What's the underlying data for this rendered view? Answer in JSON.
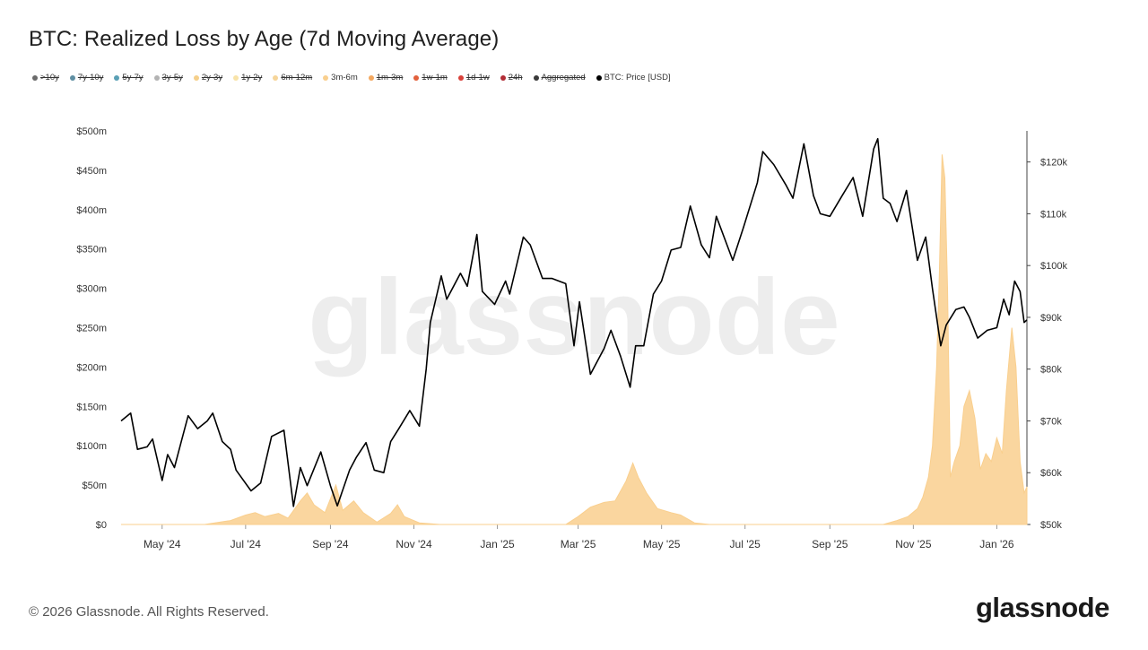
{
  "title": "BTC: Realized Loss by Age (7d Moving Average)",
  "legend": [
    {
      "label": ">10y",
      "color": "#6b6b6b",
      "hidden": true
    },
    {
      "label": "7y-10y",
      "color": "#5f8fa3",
      "hidden": true
    },
    {
      "label": "5y-7y",
      "color": "#5aa0b5",
      "hidden": true
    },
    {
      "label": "3y-5y",
      "color": "#b3b3b3",
      "hidden": true
    },
    {
      "label": "2y-3y",
      "color": "#f5cf8a",
      "hidden": true
    },
    {
      "label": "1y-2y",
      "color": "#f8e3a8",
      "hidden": true
    },
    {
      "label": "6m-12m",
      "color": "#f6d59a",
      "hidden": true
    },
    {
      "label": "3m-6m",
      "color": "#f9cf8e",
      "hidden": false
    },
    {
      "label": "1m-3m",
      "color": "#f3a860",
      "hidden": true
    },
    {
      "label": "1w-1m",
      "color": "#e2603c",
      "hidden": true
    },
    {
      "label": "1d-1w",
      "color": "#d9413a",
      "hidden": true
    },
    {
      "label": "24h",
      "color": "#b22d36",
      "hidden": true
    },
    {
      "label": "Aggregated",
      "color": "#3a3a3a",
      "hidden": true
    },
    {
      "label": "BTC: Price [USD]",
      "color": "#000000",
      "hidden": false
    }
  ],
  "watermark": "glassnode",
  "footer": "© 2026 Glassnode. All Rights Reserved.",
  "brand": "glassnode",
  "chart_data": {
    "type": "area",
    "x_start": "2024-04-01",
    "x_end": "2026-01-23",
    "x_ticks": [
      {
        "date": "2024-05-01",
        "label": "May '24"
      },
      {
        "date": "2024-07-01",
        "label": "Jul '24"
      },
      {
        "date": "2024-09-01",
        "label": "Sep '24"
      },
      {
        "date": "2024-11-01",
        "label": "Nov '24"
      },
      {
        "date": "2025-01-01",
        "label": "Jan '25"
      },
      {
        "date": "2025-03-01",
        "label": "Mar '25"
      },
      {
        "date": "2025-05-01",
        "label": "May '25"
      },
      {
        "date": "2025-07-01",
        "label": "Jul '25"
      },
      {
        "date": "2025-09-01",
        "label": "Sep '25"
      },
      {
        "date": "2025-11-01",
        "label": "Nov '25"
      },
      {
        "date": "2026-01-01",
        "label": "Jan '26"
      }
    ],
    "y_left": {
      "min": 0,
      "max": 500,
      "ticks": [
        {
          "v": 0,
          "label": "$0"
        },
        {
          "v": 50,
          "label": "$50m"
        },
        {
          "v": 100,
          "label": "$100m"
        },
        {
          "v": 150,
          "label": "$150m"
        },
        {
          "v": 200,
          "label": "$200m"
        },
        {
          "v": 250,
          "label": "$250m"
        },
        {
          "v": 300,
          "label": "$300m"
        },
        {
          "v": 350,
          "label": "$350m"
        },
        {
          "v": 400,
          "label": "$400m"
        },
        {
          "v": 450,
          "label": "$450m"
        },
        {
          "v": 500,
          "label": "$500m"
        }
      ]
    },
    "y_right": {
      "min": 50000,
      "max": 126000,
      "ticks": [
        {
          "v": 50000,
          "label": "$50k"
        },
        {
          "v": 60000,
          "label": "$60k"
        },
        {
          "v": 70000,
          "label": "$70k"
        },
        {
          "v": 80000,
          "label": "$80k"
        },
        {
          "v": 90000,
          "label": "$90k"
        },
        {
          "v": 100000,
          "label": "$100k"
        },
        {
          "v": 110000,
          "label": "$110k"
        },
        {
          "v": 120000,
          "label": "$120k"
        }
      ]
    },
    "series": [
      {
        "name": "3m-6m",
        "axis": "left",
        "color": "#f9cf8e",
        "points": [
          [
            "2024-04-01",
            0
          ],
          [
            "2024-06-01",
            0
          ],
          [
            "2024-06-20",
            5
          ],
          [
            "2024-07-01",
            12
          ],
          [
            "2024-07-08",
            15
          ],
          [
            "2024-07-15",
            10
          ],
          [
            "2024-07-25",
            14
          ],
          [
            "2024-08-01",
            8
          ],
          [
            "2024-08-10",
            30
          ],
          [
            "2024-08-15",
            40
          ],
          [
            "2024-08-20",
            25
          ],
          [
            "2024-08-28",
            15
          ],
          [
            "2024-09-05",
            50
          ],
          [
            "2024-09-10",
            18
          ],
          [
            "2024-09-18",
            30
          ],
          [
            "2024-09-25",
            15
          ],
          [
            "2024-10-05",
            3
          ],
          [
            "2024-10-15",
            14
          ],
          [
            "2024-10-20",
            25
          ],
          [
            "2024-10-25",
            10
          ],
          [
            "2024-11-05",
            2
          ],
          [
            "2024-11-20",
            0
          ],
          [
            "2025-02-20",
            0
          ],
          [
            "2025-03-01",
            10
          ],
          [
            "2025-03-10",
            22
          ],
          [
            "2025-03-20",
            28
          ],
          [
            "2025-03-28",
            30
          ],
          [
            "2025-04-05",
            55
          ],
          [
            "2025-04-10",
            78
          ],
          [
            "2025-04-14",
            60
          ],
          [
            "2025-04-20",
            40
          ],
          [
            "2025-04-28",
            20
          ],
          [
            "2025-05-08",
            15
          ],
          [
            "2025-05-15",
            12
          ],
          [
            "2025-05-25",
            2
          ],
          [
            "2025-06-05",
            0
          ],
          [
            "2025-10-10",
            0
          ],
          [
            "2025-10-20",
            5
          ],
          [
            "2025-10-28",
            10
          ],
          [
            "2025-11-04",
            20
          ],
          [
            "2025-11-08",
            35
          ],
          [
            "2025-11-12",
            60
          ],
          [
            "2025-11-15",
            100
          ],
          [
            "2025-11-18",
            200
          ],
          [
            "2025-11-20",
            320
          ],
          [
            "2025-11-22",
            470
          ],
          [
            "2025-11-24",
            440
          ],
          [
            "2025-11-26",
            300
          ],
          [
            "2025-11-28",
            60
          ],
          [
            "2025-12-01",
            80
          ],
          [
            "2025-12-05",
            100
          ],
          [
            "2025-12-08",
            150
          ],
          [
            "2025-12-12",
            170
          ],
          [
            "2025-12-16",
            135
          ],
          [
            "2025-12-20",
            70
          ],
          [
            "2025-12-24",
            90
          ],
          [
            "2025-12-28",
            80
          ],
          [
            "2026-01-01",
            110
          ],
          [
            "2026-01-05",
            90
          ],
          [
            "2026-01-08",
            170
          ],
          [
            "2026-01-12",
            250
          ],
          [
            "2026-01-15",
            200
          ],
          [
            "2026-01-18",
            80
          ],
          [
            "2026-01-21",
            40
          ],
          [
            "2026-01-23",
            48
          ]
        ]
      },
      {
        "name": "BTC: Price [USD]",
        "axis": "right",
        "color": "#000000",
        "points": [
          [
            "2024-04-01",
            70000
          ],
          [
            "2024-04-08",
            71500
          ],
          [
            "2024-04-13",
            64500
          ],
          [
            "2024-04-20",
            65000
          ],
          [
            "2024-04-24",
            66500
          ],
          [
            "2024-05-01",
            58500
          ],
          [
            "2024-05-05",
            63500
          ],
          [
            "2024-05-10",
            61000
          ],
          [
            "2024-05-15",
            66000
          ],
          [
            "2024-05-20",
            71000
          ],
          [
            "2024-05-27",
            68500
          ],
          [
            "2024-06-03",
            70000
          ],
          [
            "2024-06-07",
            71500
          ],
          [
            "2024-06-14",
            66000
          ],
          [
            "2024-06-20",
            64500
          ],
          [
            "2024-06-24",
            60500
          ],
          [
            "2024-07-05",
            56500
          ],
          [
            "2024-07-12",
            58000
          ],
          [
            "2024-07-20",
            67000
          ],
          [
            "2024-07-29",
            68200
          ],
          [
            "2024-08-05",
            53500
          ],
          [
            "2024-08-10",
            61000
          ],
          [
            "2024-08-15",
            57500
          ],
          [
            "2024-08-25",
            64000
          ],
          [
            "2024-09-01",
            57500
          ],
          [
            "2024-09-06",
            53600
          ],
          [
            "2024-09-15",
            60500
          ],
          [
            "2024-09-20",
            63000
          ],
          [
            "2024-09-27",
            65800
          ],
          [
            "2024-10-03",
            60500
          ],
          [
            "2024-10-10",
            60000
          ],
          [
            "2024-10-15",
            66000
          ],
          [
            "2024-10-21",
            68500
          ],
          [
            "2024-10-29",
            72000
          ],
          [
            "2024-11-05",
            69000
          ],
          [
            "2024-11-10",
            80000
          ],
          [
            "2024-11-13",
            89000
          ],
          [
            "2024-11-21",
            98000
          ],
          [
            "2024-11-25",
            93500
          ],
          [
            "2024-12-05",
            98500
          ],
          [
            "2024-12-10",
            96000
          ],
          [
            "2024-12-17",
            106000
          ],
          [
            "2024-12-21",
            95000
          ],
          [
            "2024-12-30",
            92500
          ],
          [
            "2025-01-07",
            97000
          ],
          [
            "2025-01-10",
            94500
          ],
          [
            "2025-01-20",
            105500
          ],
          [
            "2025-01-25",
            104000
          ],
          [
            "2025-02-03",
            97500
          ],
          [
            "2025-02-10",
            97500
          ],
          [
            "2025-02-20",
            96500
          ],
          [
            "2025-02-26",
            84500
          ],
          [
            "2025-03-02",
            93000
          ],
          [
            "2025-03-10",
            79000
          ],
          [
            "2025-03-20",
            84000
          ],
          [
            "2025-03-25",
            87500
          ],
          [
            "2025-04-01",
            82500
          ],
          [
            "2025-04-08",
            76500
          ],
          [
            "2025-04-12",
            84500
          ],
          [
            "2025-04-18",
            84500
          ],
          [
            "2025-04-25",
            94500
          ],
          [
            "2025-05-01",
            97000
          ],
          [
            "2025-05-08",
            103000
          ],
          [
            "2025-05-15",
            103500
          ],
          [
            "2025-05-22",
            111500
          ],
          [
            "2025-05-30",
            104000
          ],
          [
            "2025-06-05",
            101500
          ],
          [
            "2025-06-10",
            109500
          ],
          [
            "2025-06-22",
            101000
          ],
          [
            "2025-06-30",
            107500
          ],
          [
            "2025-07-10",
            116000
          ],
          [
            "2025-07-14",
            122000
          ],
          [
            "2025-07-22",
            119500
          ],
          [
            "2025-07-31",
            115500
          ],
          [
            "2025-08-05",
            113000
          ],
          [
            "2025-08-13",
            123500
          ],
          [
            "2025-08-20",
            113500
          ],
          [
            "2025-08-25",
            110000
          ],
          [
            "2025-09-01",
            109500
          ],
          [
            "2025-09-10",
            113500
          ],
          [
            "2025-09-18",
            117000
          ],
          [
            "2025-09-25",
            109500
          ],
          [
            "2025-10-03",
            122500
          ],
          [
            "2025-10-06",
            124500
          ],
          [
            "2025-10-10",
            113000
          ],
          [
            "2025-10-15",
            112000
          ],
          [
            "2025-10-20",
            108500
          ],
          [
            "2025-10-27",
            114500
          ],
          [
            "2025-11-04",
            101000
          ],
          [
            "2025-11-10",
            105500
          ],
          [
            "2025-11-15",
            95500
          ],
          [
            "2025-11-21",
            84500
          ],
          [
            "2025-11-25",
            88500
          ],
          [
            "2025-12-02",
            91500
          ],
          [
            "2025-12-08",
            92000
          ],
          [
            "2025-12-12",
            90000
          ],
          [
            "2025-12-18",
            86000
          ],
          [
            "2025-12-25",
            87500
          ],
          [
            "2026-01-01",
            88000
          ],
          [
            "2026-01-06",
            93500
          ],
          [
            "2026-01-10",
            90500
          ],
          [
            "2026-01-14",
            97000
          ],
          [
            "2026-01-18",
            95000
          ],
          [
            "2026-01-21",
            89000
          ],
          [
            "2026-01-23",
            89500
          ]
        ]
      }
    ]
  }
}
